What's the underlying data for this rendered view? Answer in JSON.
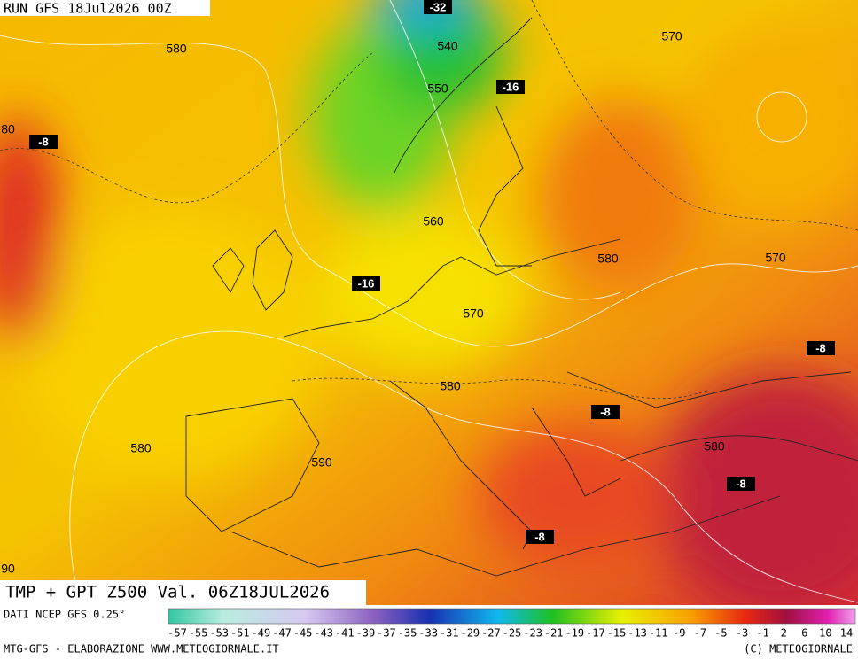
{
  "header": {
    "run": "RUN GFS 18Jul2026 00Z"
  },
  "map": {
    "title": "TMP + GPT Z500 Val. 06Z18JUL2026",
    "contour_labels": [
      540,
      570,
      580,
      550,
      80,
      560,
      580,
      570,
      570,
      580,
      580,
      580,
      590,
      90
    ],
    "isotherm_labels": [
      -32,
      -16,
      -8,
      -16,
      -8,
      -8,
      -8,
      -8
    ]
  },
  "legend": {
    "source": "DATI NCEP GFS 0.25°",
    "ticks": [
      -57,
      -55,
      -53,
      -51,
      -49,
      -47,
      -45,
      -43,
      -41,
      -39,
      -37,
      -35,
      -33,
      -31,
      -29,
      -27,
      -25,
      -23,
      -21,
      -19,
      -17,
      -15,
      -13,
      -11,
      -9,
      -7,
      -5,
      -3,
      -1,
      2,
      6,
      10,
      14
    ]
  },
  "footer": {
    "left": "MTG-GFS - ELABORAZIONE WWW.METEOGIORNALE.IT",
    "right": "(C) METEOGIORNALE"
  }
}
